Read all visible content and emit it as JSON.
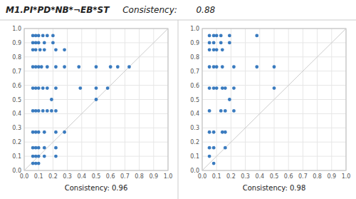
{
  "title": "M1.PI*PD*NB*¬EB*ST",
  "subtitle": "Consistency:       0.88",
  "chart_data": [
    {
      "type": "scatter",
      "xlabel": "Consistency: 0.96",
      "color": "#3a7bbf",
      "grid": true,
      "x": [
        0.06,
        0.08,
        0.1,
        0.13,
        0.16,
        0.2,
        0.06,
        0.08,
        0.1,
        0.14,
        0.2,
        0.06,
        0.08,
        0.11,
        0.14,
        0.22,
        0.28,
        0.06,
        0.08,
        0.1,
        0.12,
        0.16,
        0.22,
        0.28,
        0.38,
        0.5,
        0.6,
        0.65,
        0.73,
        0.06,
        0.08,
        0.1,
        0.13,
        0.16,
        0.22,
        0.39,
        0.5,
        0.58,
        0.19,
        0.5,
        0.06,
        0.08,
        0.1,
        0.13,
        0.16,
        0.19,
        0.22,
        0.06,
        0.08,
        0.1,
        0.14,
        0.22,
        0.28,
        0.06,
        0.08,
        0.1,
        0.14,
        0.22,
        0.06,
        0.08,
        0.1,
        0.14,
        0.22,
        0.06,
        0.08,
        0.1
      ],
      "values": [
        0.95,
        0.95,
        0.95,
        0.95,
        0.95,
        0.95,
        0.9,
        0.9,
        0.9,
        0.9,
        0.9,
        0.85,
        0.85,
        0.85,
        0.85,
        0.85,
        0.85,
        0.73,
        0.73,
        0.73,
        0.73,
        0.73,
        0.73,
        0.73,
        0.73,
        0.73,
        0.73,
        0.73,
        0.73,
        0.58,
        0.58,
        0.58,
        0.58,
        0.58,
        0.58,
        0.58,
        0.58,
        0.58,
        0.5,
        0.5,
        0.42,
        0.42,
        0.42,
        0.42,
        0.42,
        0.42,
        0.42,
        0.27,
        0.27,
        0.27,
        0.27,
        0.27,
        0.27,
        0.16,
        0.16,
        0.16,
        0.16,
        0.16,
        0.1,
        0.1,
        0.1,
        0.1,
        0.1,
        0.05,
        0.05,
        0.05
      ],
      "xlim": [
        0.0,
        1.0
      ],
      "ylim": [
        0.0,
        1.0
      ],
      "xticks": [
        {
          "value": 0.0,
          "label": "0.0"
        },
        0.1,
        0.2,
        0.3,
        0.4,
        0.5,
        0.6,
        0.7,
        0.8,
        0.9,
        {
          "value": 1.0,
          "label": "1.0"
        }
      ],
      "yticks": [
        {
          "value": 0.0,
          "label": "0.0"
        },
        0.1,
        0.2,
        0.3,
        0.4,
        0.5,
        0.6,
        0.7,
        0.8,
        0.9,
        {
          "value": 1.0,
          "label": "1.0"
        }
      ]
    },
    {
      "type": "scatter",
      "xlabel": "Consistency: 0.98",
      "color": "#3a7bbf",
      "grid": true,
      "x": [
        0.05,
        0.08,
        0.1,
        0.13,
        0.19,
        0.38,
        0.05,
        0.08,
        0.13,
        0.19,
        0.05,
        0.08,
        0.1,
        0.14,
        0.05,
        0.08,
        0.1,
        0.14,
        0.22,
        0.38,
        0.5,
        0.05,
        0.08,
        0.1,
        0.14,
        0.16,
        0.22,
        0.5,
        0.19,
        0.05,
        0.13,
        0.16,
        0.22,
        0.05,
        0.08,
        0.14,
        0.16,
        0.05,
        0.08,
        0.16,
        0.05,
        0.08
      ],
      "values": [
        0.95,
        0.95,
        0.95,
        0.95,
        0.95,
        0.95,
        0.9,
        0.9,
        0.9,
        0.9,
        0.85,
        0.85,
        0.85,
        0.85,
        0.73,
        0.73,
        0.73,
        0.73,
        0.73,
        0.73,
        0.73,
        0.58,
        0.58,
        0.58,
        0.58,
        0.58,
        0.58,
        0.58,
        0.5,
        0.42,
        0.42,
        0.42,
        0.42,
        0.27,
        0.27,
        0.27,
        0.27,
        0.16,
        0.16,
        0.16,
        0.1,
        0.05
      ],
      "xlim": [
        0.0,
        1.0
      ],
      "ylim": [
        0.0,
        1.0
      ],
      "xticks": [
        {
          "value": 0.0,
          "label": "0.0"
        },
        0.1,
        0.2,
        0.3,
        0.4,
        0.5,
        0.6,
        0.7,
        0.8,
        0.9,
        {
          "value": 1.0,
          "label": "1.0"
        }
      ],
      "yticks": [
        {
          "value": 0.0,
          "label": "0.0"
        },
        0.1,
        0.2,
        0.3,
        0.4,
        0.5,
        0.6,
        0.7,
        0.8,
        0.9,
        {
          "value": 1.0,
          "label": "1.0"
        }
      ]
    }
  ]
}
